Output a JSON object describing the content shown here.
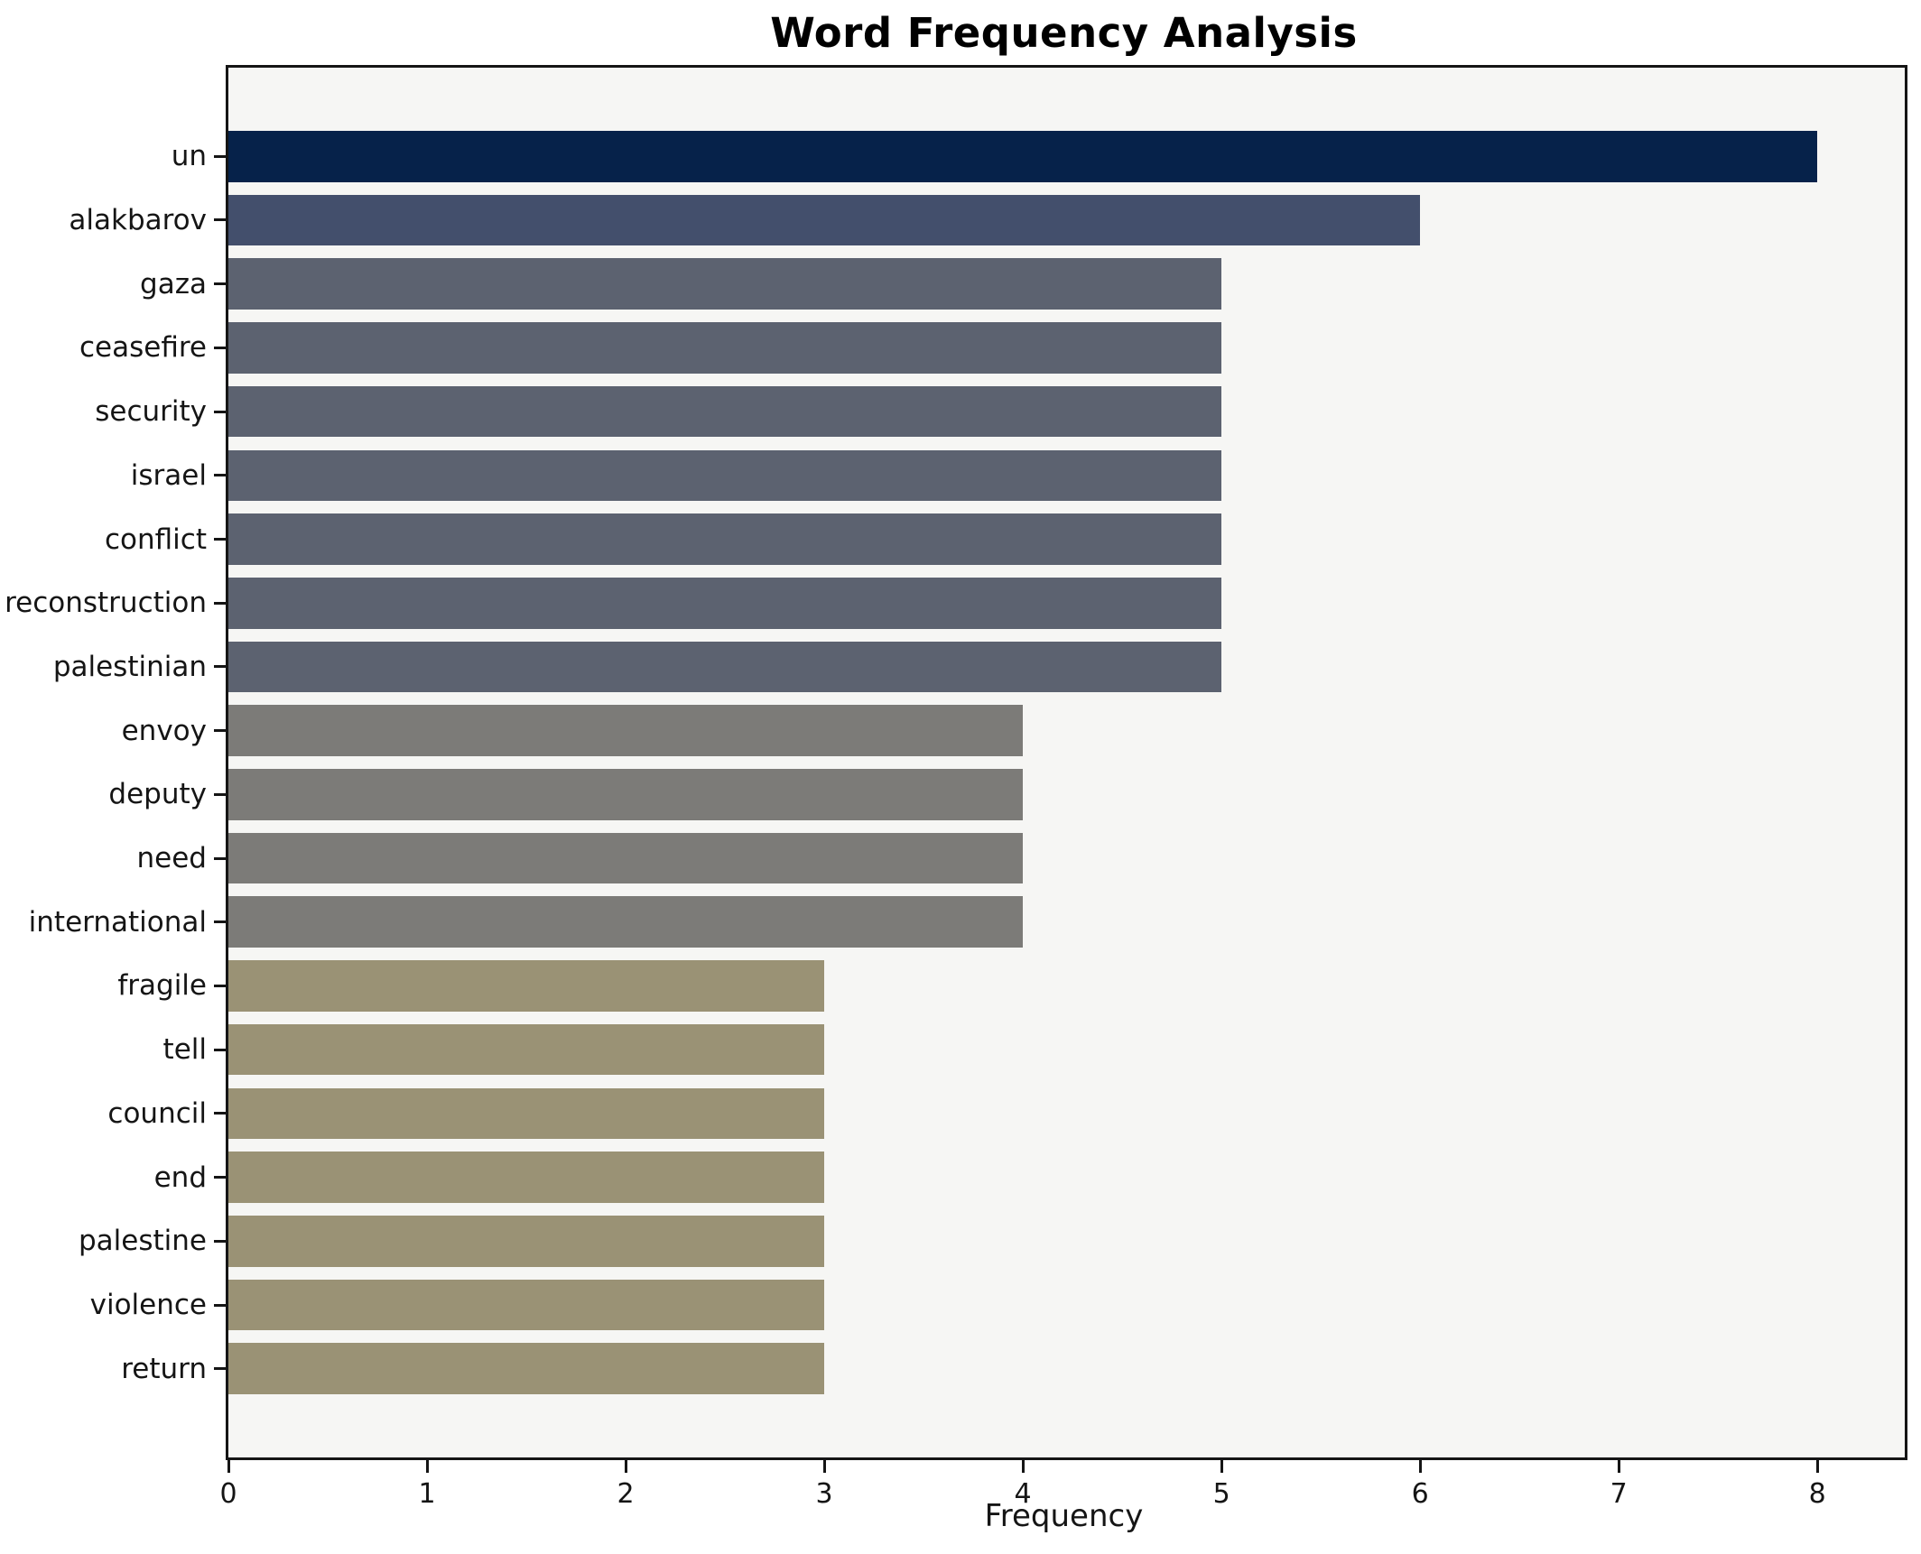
{
  "title": "Word Frequency Analysis",
  "chart_data": {
    "type": "bar",
    "orientation": "horizontal",
    "title": "Word Frequency Analysis",
    "xlabel": "Frequency",
    "ylabel": "",
    "categories": [
      "un",
      "alakbarov",
      "gaza",
      "ceasefire",
      "security",
      "israel",
      "conflict",
      "reconstruction",
      "palestinian",
      "envoy",
      "deputy",
      "need",
      "international",
      "fragile",
      "tell",
      "council",
      "end",
      "palestine",
      "violence",
      "return"
    ],
    "values": [
      8,
      6,
      5,
      5,
      5,
      5,
      5,
      5,
      5,
      4,
      4,
      4,
      4,
      3,
      3,
      3,
      3,
      3,
      3,
      3
    ],
    "bar_colors": [
      "#06224a",
      "#434f6c",
      "#5c6270",
      "#5c6270",
      "#5c6270",
      "#5c6270",
      "#5c6270",
      "#5c6270",
      "#5c6270",
      "#7c7b78",
      "#7c7b78",
      "#7c7b78",
      "#7c7b78",
      "#9a9275",
      "#9a9275",
      "#9a9275",
      "#9a9275",
      "#9a9275",
      "#9a9275",
      "#9a9275"
    ],
    "xticks": [
      0,
      1,
      2,
      3,
      4,
      5,
      6,
      7,
      8
    ],
    "xlim": [
      0,
      8.44
    ],
    "grid": false,
    "legend": null,
    "plot_background": "#f6f6f4",
    "figure_background": "#ffffff",
    "spine_color": "#151515"
  }
}
